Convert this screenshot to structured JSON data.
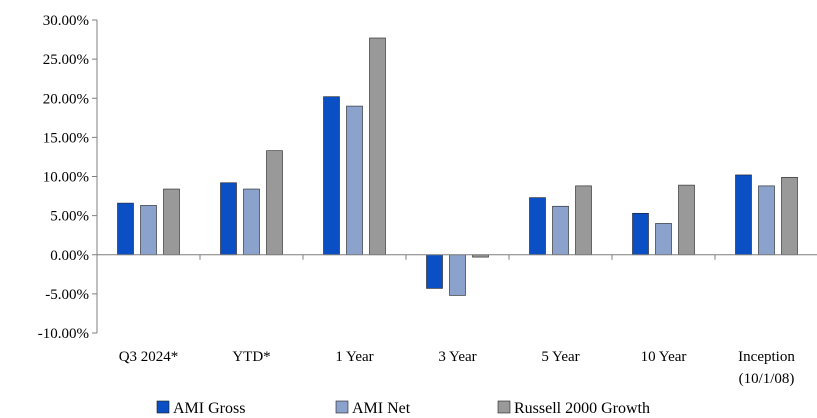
{
  "chart_data": {
    "type": "bar",
    "title": "",
    "xlabel": "",
    "ylabel": "",
    "ylim": [
      -10,
      30
    ],
    "yticks": [
      -10,
      -5,
      0,
      5,
      10,
      15,
      20,
      25,
      30
    ],
    "y_tick_labels": [
      "-10.00%",
      "-5.00%",
      "0.00%",
      "5.00%",
      "10.00%",
      "15.00%",
      "20.00%",
      "25.00%",
      "30.00%"
    ],
    "categories": [
      "Q3 2024*",
      "YTD*",
      "1 Year",
      "3 Year",
      "5 Year",
      "10 Year",
      "Inception (10/1/08)"
    ],
    "category_lines": [
      [
        "Q3 2024*"
      ],
      [
        "YTD*"
      ],
      [
        "1 Year"
      ],
      [
        "3 Year"
      ],
      [
        "5 Year"
      ],
      [
        "10 Year"
      ],
      [
        "Inception",
        "(10/1/08)"
      ]
    ],
    "series": [
      {
        "name": "AMI Gross",
        "color": "#0a4fc4",
        "values": [
          6.6,
          9.2,
          20.2,
          -4.3,
          7.3,
          5.3,
          10.2
        ]
      },
      {
        "name": "AMI Net",
        "color": "#8aa2cc",
        "values": [
          6.3,
          8.4,
          19.0,
          -5.2,
          6.2,
          4.0,
          8.8
        ]
      },
      {
        "name": "Russell 2000 Growth",
        "color": "#999999",
        "values": [
          8.4,
          13.3,
          27.7,
          -0.3,
          8.8,
          8.9,
          9.9
        ]
      }
    ],
    "grid": false,
    "legend_position": "bottom"
  }
}
